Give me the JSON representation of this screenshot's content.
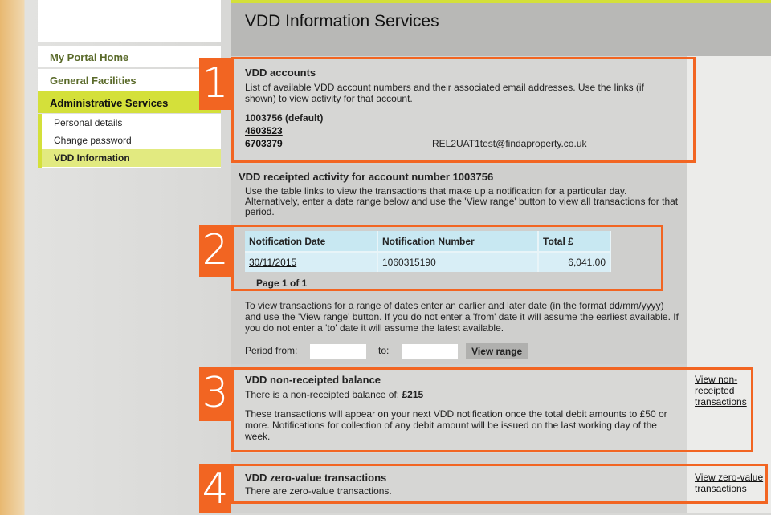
{
  "nav": {
    "items": [
      {
        "label": "My Portal Home"
      },
      {
        "label": "General Facilities"
      },
      {
        "label": "Administrative Services"
      }
    ],
    "sub": [
      {
        "label": "Personal details"
      },
      {
        "label": "Change password"
      },
      {
        "label": "VDD Information"
      }
    ]
  },
  "header": {
    "title": "VDD Information Services"
  },
  "accounts": {
    "badge": "1",
    "title": "VDD accounts",
    "desc": "List of available VDD account numbers and their associated email addresses. Use the links (if shown) to view activity for that account.",
    "default": "1003756 (default)",
    "links": [
      "4603523",
      "6703379"
    ],
    "email": "REL2UAT1test@findaproperty.co.uk"
  },
  "activity": {
    "badge": "2",
    "title": "VDD receipted activity for account number 1003756",
    "desc": "Use the table links to view the transactions that make up a notification for a particular day. Alternatively, enter a date range below and use the 'View range' button to view all transactions for that period.",
    "columns": [
      "Notification Date",
      "Notification Number",
      "Total £"
    ],
    "rows": [
      {
        "date": "30/11/2015",
        "number": "1060315190",
        "total": "6,041.00"
      }
    ],
    "page": "Page 1 of 1",
    "range_text": "To view transactions for a range of dates enter an earlier and later date (in the format dd/mm/yyyy) and use the 'View range' button. If you do not enter a 'from' date it will assume the earliest available. If you do not enter a 'to' date it will assume the latest available.",
    "from_label": "Period from:",
    "to_label": "to:",
    "from_value": "",
    "to_value": "",
    "button": "View range"
  },
  "balance": {
    "badge": "3",
    "title": "VDD non-receipted balance",
    "text": "There is a non-receipted balance of:",
    "amount": "£215",
    "note": "These transactions will appear on your next VDD notification once the total debit amounts to £50 or more. Notifications for collection of any debit amount will be issued on the last working day of the week.",
    "link": "View non-receipted transactions"
  },
  "zero": {
    "badge": "4",
    "title": "VDD zero-value transactions",
    "text": "There are zero-value transactions.",
    "link": "View zero-value transactions"
  },
  "colors": {
    "accent": "#f26522",
    "nav_active": "#d4e03a"
  }
}
